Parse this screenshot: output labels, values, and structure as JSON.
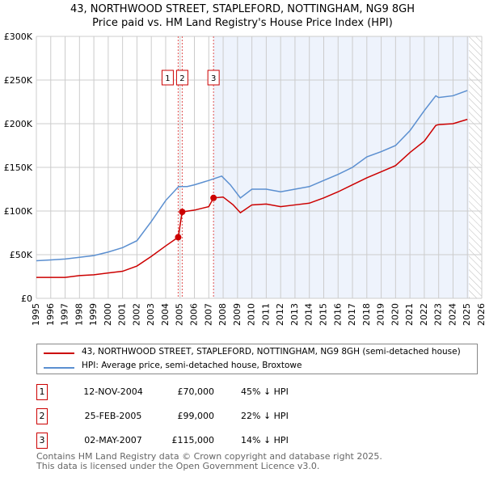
{
  "title": "43, NORTHWOOD STREET, STAPLEFORD, NOTTINGHAM, NG9 8GH",
  "subtitle": "Price paid vs. HM Land Registry's House Price Index (HPI)",
  "chart_data": {
    "type": "line",
    "title": "43, NORTHWOOD STREET, STAPLEFORD, NOTTINGHAM, NG9 8GH",
    "xlim": [
      1995,
      2026
    ],
    "ylim": [
      0,
      300000
    ],
    "x_ticks": [
      "1995",
      "1996",
      "1997",
      "1998",
      "1999",
      "2000",
      "2001",
      "2002",
      "2003",
      "2004",
      "2005",
      "2006",
      "2007",
      "2008",
      "2009",
      "2010",
      "2011",
      "2012",
      "2013",
      "2014",
      "2015",
      "2016",
      "2017",
      "2018",
      "2019",
      "2020",
      "2021",
      "2022",
      "2023",
      "2024",
      "2025",
      "2026"
    ],
    "y_ticks": [
      {
        "v": 0,
        "label": "£0"
      },
      {
        "v": 50000,
        "label": "£50K"
      },
      {
        "v": 100000,
        "label": "£100K"
      },
      {
        "v": 150000,
        "label": "£150K"
      },
      {
        "v": 200000,
        "label": "£200K"
      },
      {
        "v": 250000,
        "label": "£250K"
      },
      {
        "v": 300000,
        "label": "£300K"
      }
    ],
    "series": [
      {
        "name": "43, NORTHWOOD STREET, STAPLEFORD, NOTTINGHAM, NG9 8GH (semi-detached house)",
        "color": "#cc0000",
        "points": [
          [
            1995,
            24000
          ],
          [
            1996,
            24000
          ],
          [
            1997,
            24000
          ],
          [
            1998,
            26000
          ],
          [
            1999,
            27000
          ],
          [
            2000,
            29000
          ],
          [
            2001,
            31000
          ],
          [
            2002,
            37000
          ],
          [
            2003,
            48000
          ],
          [
            2004,
            60000
          ],
          [
            2004.87,
            70000
          ],
          [
            2005.15,
            99000
          ],
          [
            2006,
            101000
          ],
          [
            2007,
            105000
          ],
          [
            2007.33,
            115000
          ],
          [
            2008,
            116000
          ],
          [
            2008.7,
            107000
          ],
          [
            2009.2,
            98000
          ],
          [
            2010,
            107000
          ],
          [
            2011,
            108000
          ],
          [
            2012,
            105000
          ],
          [
            2013,
            107000
          ],
          [
            2014,
            109000
          ],
          [
            2015,
            115000
          ],
          [
            2016,
            122000
          ],
          [
            2017,
            130000
          ],
          [
            2018,
            138000
          ],
          [
            2019,
            145000
          ],
          [
            2020,
            152000
          ],
          [
            2021,
            167000
          ],
          [
            2022,
            180000
          ],
          [
            2022.8,
            198000
          ],
          [
            2023,
            199000
          ],
          [
            2024,
            200000
          ],
          [
            2025,
            205000
          ]
        ]
      },
      {
        "name": "HPI: Average price, semi-detached house, Broxtowe",
        "color": "#5b8fd0",
        "points": [
          [
            1995,
            43000
          ],
          [
            1996,
            44000
          ],
          [
            1997,
            45000
          ],
          [
            1998,
            47000
          ],
          [
            1999,
            49000
          ],
          [
            2000,
            53000
          ],
          [
            2001,
            58000
          ],
          [
            2002,
            66000
          ],
          [
            2003,
            88000
          ],
          [
            2004,
            112000
          ],
          [
            2004.9,
            128000
          ],
          [
            2005.5,
            128000
          ],
          [
            2006,
            130000
          ],
          [
            2007,
            135000
          ],
          [
            2007.9,
            140000
          ],
          [
            2008.5,
            130000
          ],
          [
            2009.2,
            115000
          ],
          [
            2010,
            125000
          ],
          [
            2011,
            125000
          ],
          [
            2012,
            122000
          ],
          [
            2013,
            125000
          ],
          [
            2014,
            128000
          ],
          [
            2015,
            135000
          ],
          [
            2016,
            142000
          ],
          [
            2017,
            150000
          ],
          [
            2018,
            162000
          ],
          [
            2019,
            168000
          ],
          [
            2020,
            175000
          ],
          [
            2021,
            192000
          ],
          [
            2022,
            215000
          ],
          [
            2022.8,
            232000
          ],
          [
            2023,
            230000
          ],
          [
            2024,
            232000
          ],
          [
            2025,
            238000
          ]
        ]
      }
    ],
    "sales": [
      {
        "id": "1",
        "x": 2004.87,
        "price": 70000,
        "date": "12-NOV-2004",
        "price_label": "£70,000",
        "hpi": "45% ↓ HPI"
      },
      {
        "id": "2",
        "x": 2005.15,
        "price": 99000,
        "date": "25-FEB-2005",
        "price_label": "£99,000",
        "hpi": "22% ↓ HPI"
      },
      {
        "id": "3",
        "x": 2007.33,
        "price": 115000,
        "date": "02-MAY-2007",
        "price_label": "£115,000",
        "hpi": "14% ↓ HPI"
      }
    ],
    "shaded_from": 2007.33,
    "hatched_from": 2025.1,
    "grid": true
  },
  "footer": [
    "Contains HM Land Registry data © Crown copyright and database right 2025.",
    "This data is licensed under the Open Government Licence v3.0."
  ]
}
